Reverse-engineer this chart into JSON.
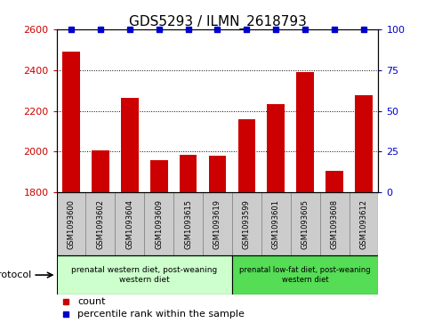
{
  "title": "GDS5293 / ILMN_2618793",
  "samples": [
    "GSM1093600",
    "GSM1093602",
    "GSM1093604",
    "GSM1093609",
    "GSM1093615",
    "GSM1093619",
    "GSM1093599",
    "GSM1093601",
    "GSM1093605",
    "GSM1093608",
    "GSM1093612"
  ],
  "counts": [
    2490,
    2005,
    2265,
    1960,
    1985,
    1980,
    2160,
    2235,
    2390,
    1905,
    2275
  ],
  "percentile_ranks": [
    100,
    100,
    100,
    100,
    100,
    100,
    100,
    100,
    100,
    100,
    100
  ],
  "bar_color": "#cc0000",
  "dot_color": "#0000cc",
  "ylim_left": [
    1800,
    2600
  ],
  "ylim_right": [
    0,
    100
  ],
  "yticks_left": [
    1800,
    2000,
    2200,
    2400,
    2600
  ],
  "yticks_right": [
    0,
    25,
    50,
    75,
    100
  ],
  "group1_label": "prenatal western diet, post-weaning\nwestern diet",
  "group2_label": "prenatal low-fat diet, post-weaning\nwestern diet",
  "group1_count": 6,
  "group2_count": 5,
  "group1_bg": "#ccffcc",
  "group2_bg": "#55dd55",
  "sample_box_bg": "#cccccc",
  "legend_count_label": "count",
  "legend_pct_label": "percentile rank within the sample",
  "protocol_label": "protocol"
}
